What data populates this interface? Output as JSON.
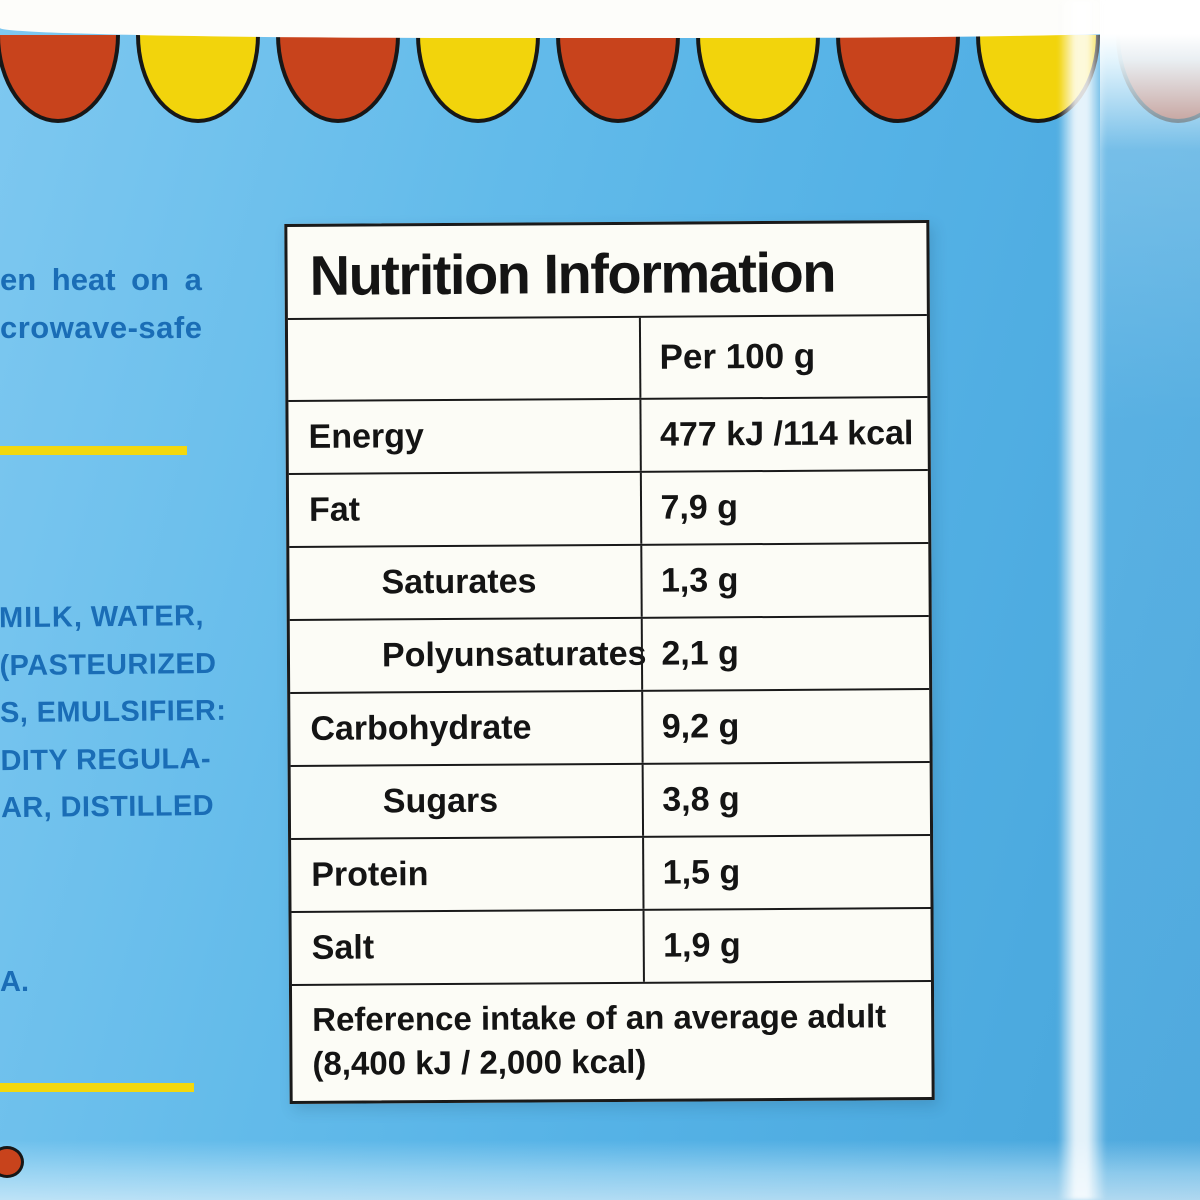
{
  "colors": {
    "scallop_red": "#c8431c",
    "scallop_yellow": "#f2d40c",
    "accent_yellow": "#f3d80e",
    "text_blue": "#1a6db6",
    "background_blue": "#5cb6e8"
  },
  "left_copy": {
    "heat_line1": "en heat on a",
    "heat_line2": "crowave-safe",
    "ingredients": {
      "line1_bold": "MILK",
      "line1_rest": ",  WATER,",
      "lines": [
        "(PASTEURIZED",
        "S, EMULSIFIER:",
        "DITY REGULA-",
        "AR, DISTILLED"
      ]
    },
    "footnote": "A."
  },
  "panel": {
    "title": "Nutrition Information",
    "column_header": "Per 100 g",
    "rows": [
      {
        "name": "Energy",
        "value": "477 kJ /114 kcal"
      },
      {
        "name": "Fat",
        "value": "7,9 g"
      },
      {
        "name": "Saturates",
        "value": "1,3 g"
      },
      {
        "name": "Polyunsaturates",
        "value": "2,1 g"
      },
      {
        "name": "Carbohydrate",
        "value": "9,2 g"
      },
      {
        "name": "Sugars",
        "value": "3,8 g"
      },
      {
        "name": "Protein",
        "value": "1,5 g"
      },
      {
        "name": "Salt",
        "value": "1,9 g"
      }
    ],
    "footer_line1": "Reference intake of an average adult",
    "footer_line2": "(8,400 kJ / 2,000 kcal)"
  }
}
